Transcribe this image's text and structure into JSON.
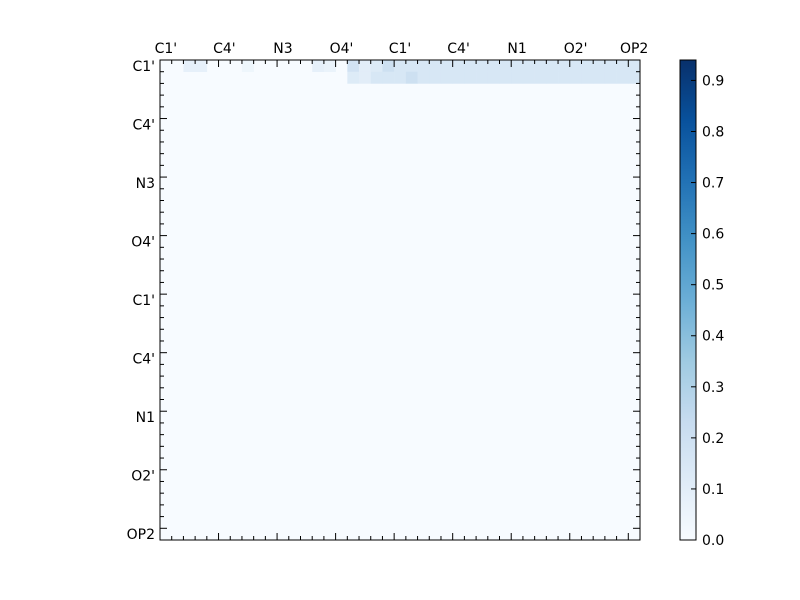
{
  "chart_data": [
    {
      "type": "heatmap",
      "x_tick_labels": [
        "C1'",
        "C4'",
        "N3",
        "O4'",
        "C1'",
        "C4'",
        "N1",
        "O2'",
        "OP2"
      ],
      "y_tick_labels": [
        "C1'",
        "C4'",
        "N3",
        "O4'",
        "C1'",
        "C4'",
        "N1",
        "O2'",
        "OP2"
      ],
      "n": 41,
      "tick_every": 5,
      "matrix": "upper-triangular",
      "background_value": 0.0,
      "colormap": "Blues",
      "vmin": 0.0,
      "vmax": 0.94,
      "grid": false,
      "cells": [
        [
          0,
          2,
          0.08
        ],
        [
          0,
          3,
          0.08
        ],
        [
          0,
          7,
          0.04
        ],
        [
          0,
          13,
          0.08
        ],
        [
          0,
          14,
          0.06
        ],
        [
          0,
          16,
          0.18
        ],
        [
          0,
          17,
          0.1
        ],
        [
          0,
          18,
          0.12
        ],
        [
          0,
          19,
          0.2
        ],
        [
          0,
          20,
          0.15
        ],
        [
          0,
          21,
          0.15
        ],
        [
          0,
          22,
          0.15
        ],
        [
          0,
          23,
          0.15
        ],
        [
          0,
          24,
          0.15
        ],
        [
          0,
          25,
          0.15
        ],
        [
          0,
          26,
          0.15
        ],
        [
          0,
          27,
          0.15
        ],
        [
          0,
          28,
          0.15
        ],
        [
          0,
          29,
          0.15
        ],
        [
          0,
          30,
          0.15
        ],
        [
          0,
          31,
          0.15
        ],
        [
          0,
          32,
          0.15
        ],
        [
          0,
          33,
          0.15
        ],
        [
          0,
          34,
          0.15
        ],
        [
          0,
          35,
          0.15
        ],
        [
          0,
          36,
          0.15
        ],
        [
          0,
          37,
          0.15
        ],
        [
          0,
          38,
          0.15
        ],
        [
          0,
          39,
          0.15
        ],
        [
          0,
          40,
          0.15
        ],
        [
          1,
          16,
          0.12
        ],
        [
          1,
          17,
          0.1
        ],
        [
          1,
          18,
          0.15
        ],
        [
          1,
          19,
          0.15
        ],
        [
          1,
          20,
          0.15
        ],
        [
          1,
          21,
          0.2
        ],
        [
          1,
          22,
          0.15
        ],
        [
          1,
          23,
          0.15
        ],
        [
          1,
          24,
          0.15
        ],
        [
          1,
          25,
          0.15
        ],
        [
          1,
          26,
          0.15
        ],
        [
          1,
          27,
          0.15
        ],
        [
          1,
          28,
          0.15
        ],
        [
          1,
          29,
          0.15
        ],
        [
          1,
          30,
          0.15
        ],
        [
          1,
          31,
          0.15
        ],
        [
          1,
          32,
          0.15
        ],
        [
          1,
          33,
          0.15
        ],
        [
          1,
          34,
          0.15
        ],
        [
          1,
          35,
          0.15
        ],
        [
          1,
          36,
          0.15
        ],
        [
          1,
          37,
          0.15
        ],
        [
          1,
          38,
          0.15
        ],
        [
          1,
          39,
          0.15
        ],
        [
          1,
          40,
          0.15
        ]
      ],
      "colorbar_ticks": [
        0.0,
        0.1,
        0.2,
        0.3,
        0.4,
        0.5,
        0.6,
        0.7,
        0.8,
        0.9
      ]
    }
  ]
}
